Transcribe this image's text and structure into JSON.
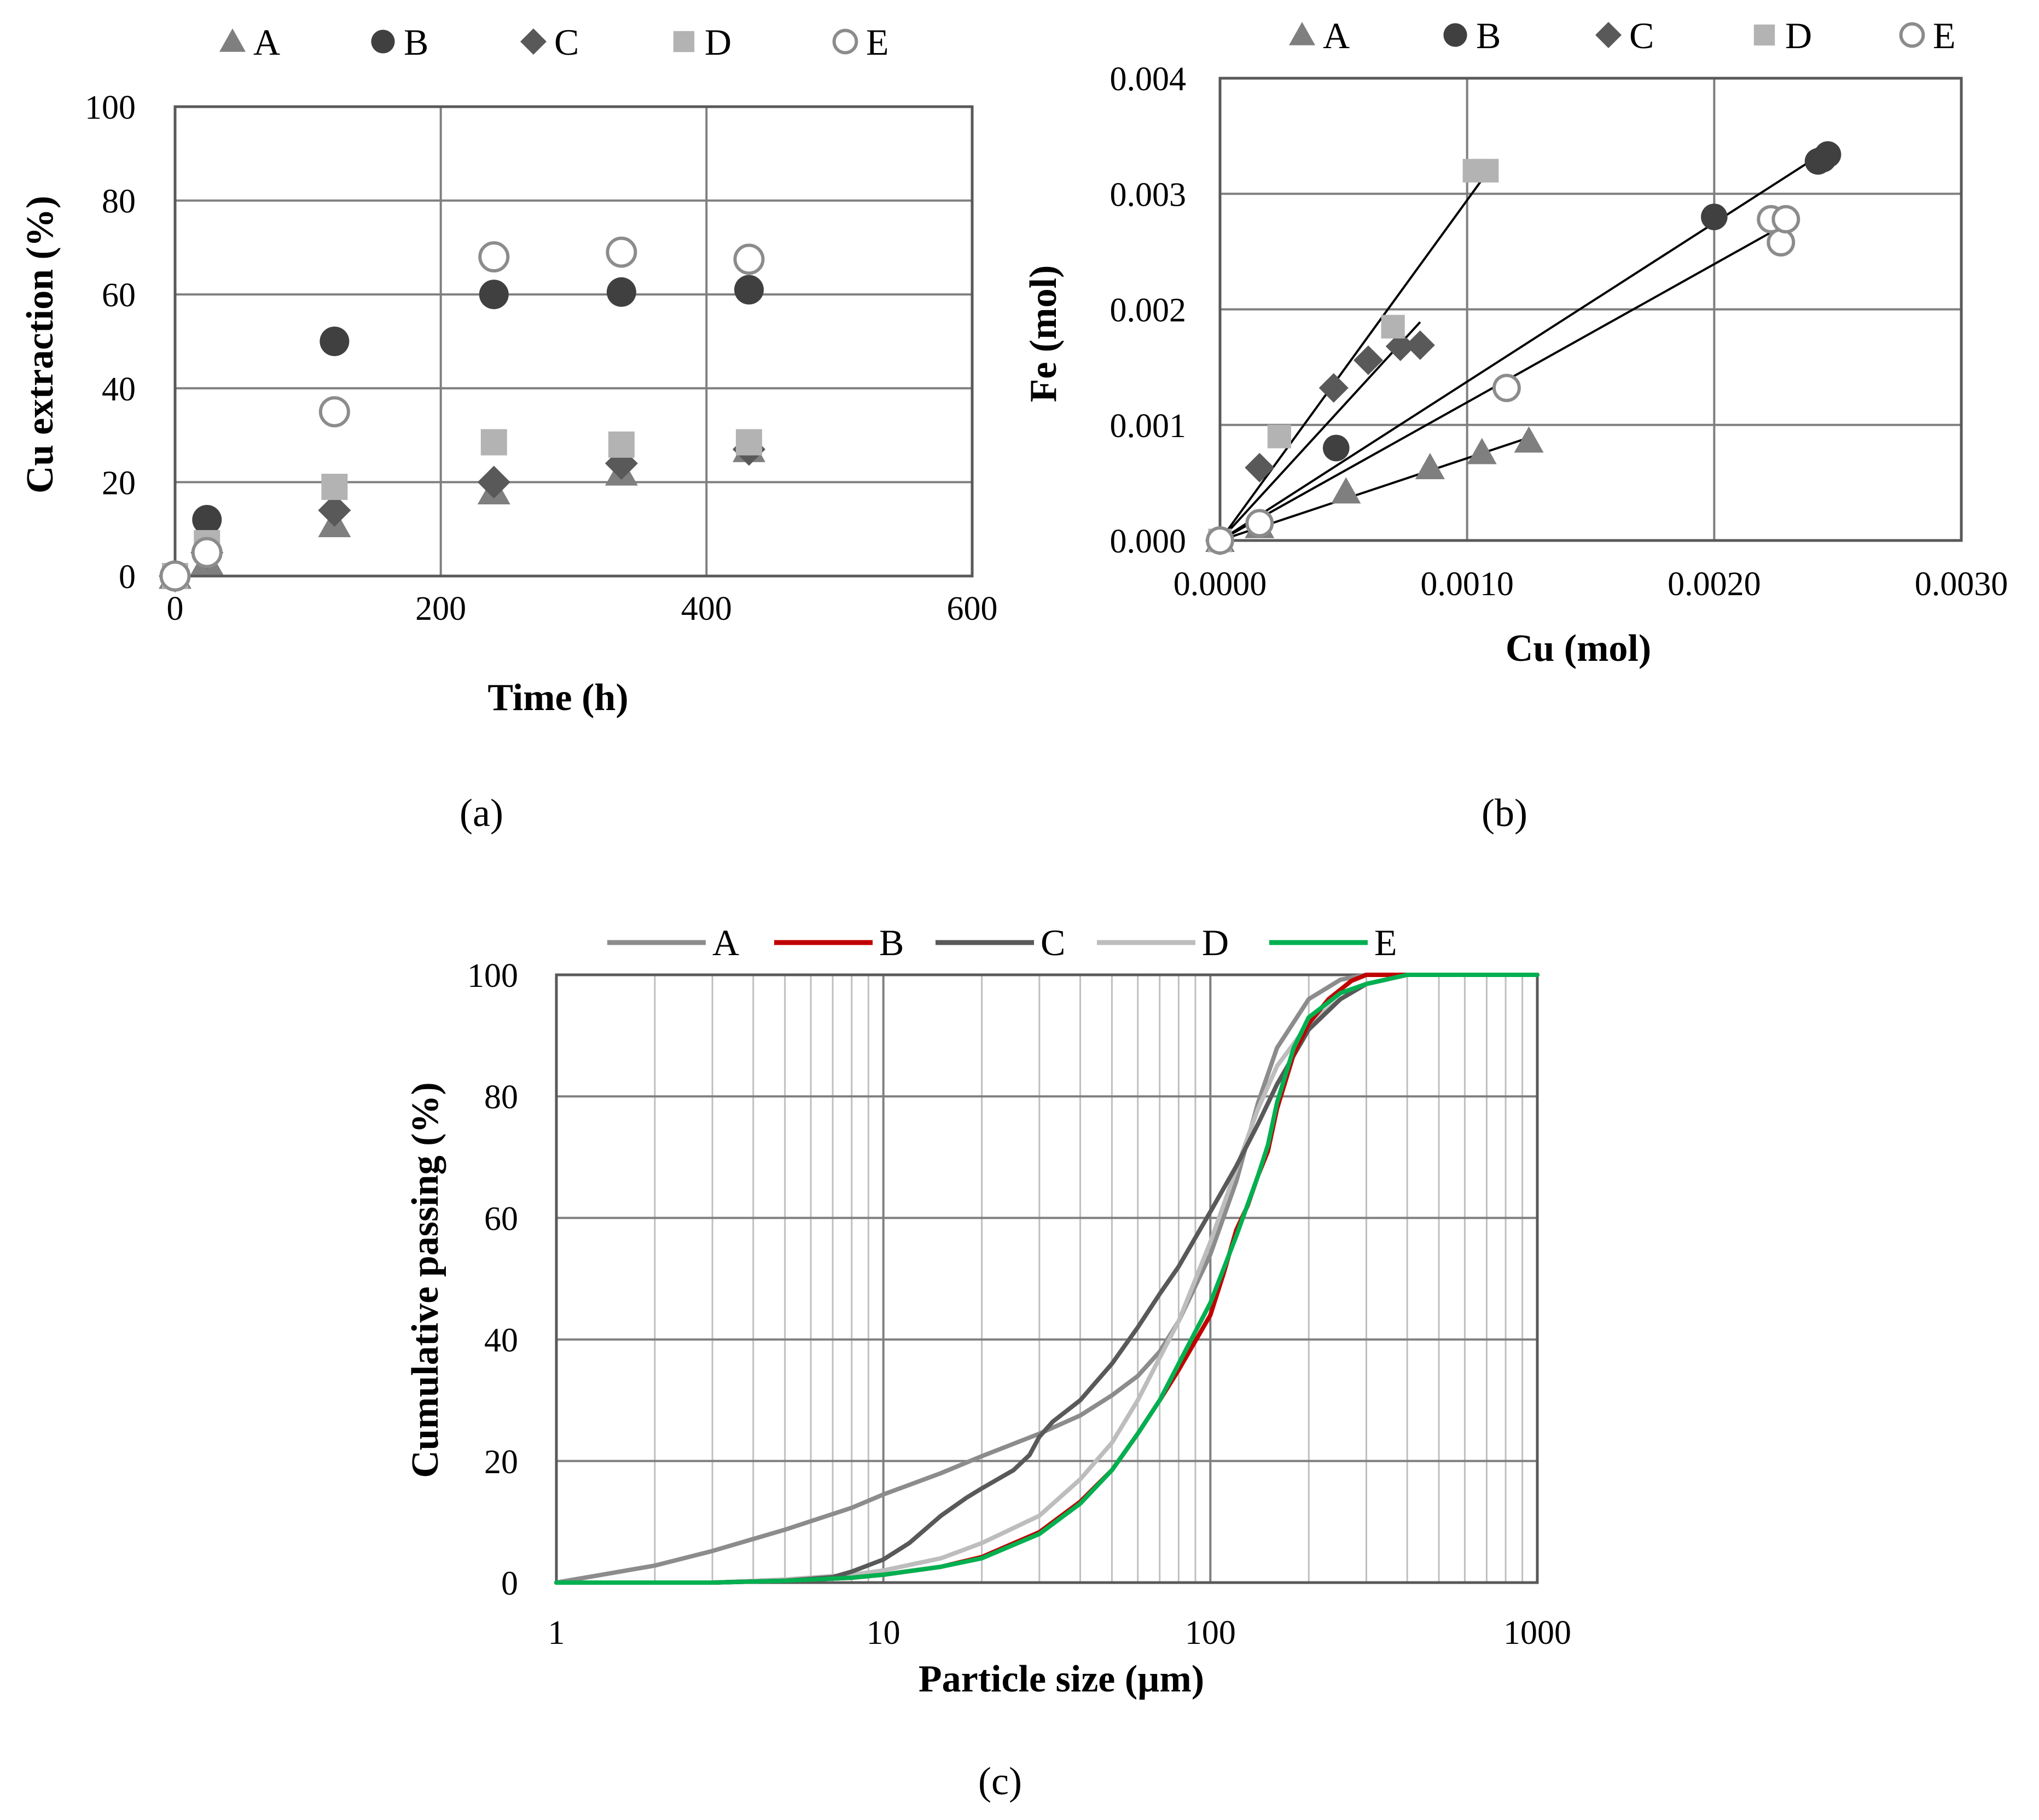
{
  "colors": {
    "A": "#7f7f7f",
    "B": "#404040",
    "C": "#595959",
    "D": "#b3b3b3",
    "E": "#8c8c8c",
    "line_B": "#c00000",
    "line_C": "#595959",
    "line_D": "#bdbdbd",
    "line_E": "#00b050",
    "trendline": "#000000"
  },
  "chart_data": [
    {
      "panel": "a",
      "caption": "(a)",
      "type": "scatter",
      "xlabel": "Time (h)",
      "ylabel": "Cu extraction (%)",
      "xlim": [
        0,
        600
      ],
      "ylim": [
        0,
        100
      ],
      "xticks": [
        "0",
        "200",
        "400",
        "600"
      ],
      "yticks": [
        "0",
        "20",
        "40",
        "60",
        "80",
        "100"
      ],
      "grid": true,
      "legend_position": "top",
      "series": [
        {
          "name": "A",
          "marker": "triangle",
          "points": [
            [
              0,
              0
            ],
            [
              24,
              3
            ],
            [
              120,
              11
            ],
            [
              240,
              18
            ],
            [
              336,
              22
            ],
            [
              432,
              27
            ]
          ]
        },
        {
          "name": "B",
          "marker": "circle",
          "points": [
            [
              0,
              0
            ],
            [
              24,
              12
            ],
            [
              120,
              50
            ],
            [
              240,
              60
            ],
            [
              336,
              60.5
            ],
            [
              432,
              61
            ]
          ]
        },
        {
          "name": "C",
          "marker": "diamond",
          "points": [
            [
              0,
              0
            ],
            [
              24,
              5
            ],
            [
              120,
              14
            ],
            [
              240,
              20
            ],
            [
              336,
              24
            ],
            [
              432,
              27
            ]
          ]
        },
        {
          "name": "D",
          "marker": "square",
          "points": [
            [
              0,
              0
            ],
            [
              24,
              7
            ],
            [
              120,
              19
            ],
            [
              240,
              28.5
            ],
            [
              336,
              28
            ],
            [
              432,
              28.5
            ]
          ]
        },
        {
          "name": "E",
          "marker": "open-circle",
          "points": [
            [
              0,
              0
            ],
            [
              24,
              5
            ],
            [
              120,
              35
            ],
            [
              240,
              68
            ],
            [
              336,
              69
            ],
            [
              432,
              67.5
            ]
          ]
        }
      ]
    },
    {
      "panel": "b",
      "caption": "(b)",
      "type": "scatter",
      "xlabel": "Cu (mol)",
      "ylabel": "Fe (mol)",
      "xlim": [
        0,
        0.003
      ],
      "ylim": [
        0,
        0.004
      ],
      "xticks": [
        "0.0000",
        "0.0010",
        "0.0020",
        "0.0030"
      ],
      "yticks": [
        "0.000",
        "0.001",
        "0.002",
        "0.003",
        "0.004"
      ],
      "grid": true,
      "legend_position": "top",
      "series": [
        {
          "name": "A",
          "marker": "triangle",
          "points": [
            [
              0,
              0
            ],
            [
              0.00016,
              0.00012
            ],
            [
              0.00051,
              0.00042
            ],
            [
              0.00085,
              0.00063
            ],
            [
              0.00106,
              0.00076
            ],
            [
              0.00125,
              0.00086
            ]
          ],
          "trendline": [
            [
              0,
              0
            ],
            [
              0.00125,
              0.00089
            ]
          ]
        },
        {
          "name": "B",
          "marker": "circle",
          "points": [
            [
              0,
              0
            ],
            [
              0.00047,
              0.0008
            ],
            [
              0.002,
              0.0028
            ],
            [
              0.00242,
              0.00328
            ],
            [
              0.00244,
              0.0033
            ],
            [
              0.00246,
              0.00334
            ]
          ],
          "trendline": [
            [
              0,
              0
            ],
            [
              0.00246,
              0.00338
            ]
          ]
        },
        {
          "name": "C",
          "marker": "diamond",
          "points": [
            [
              0,
              0
            ],
            [
              0.00016,
              0.00063
            ],
            [
              0.00046,
              0.00132
            ],
            [
              0.0006,
              0.00156
            ],
            [
              0.00073,
              0.00168
            ],
            [
              0.00081,
              0.00169
            ]
          ],
          "trendline": [
            [
              0,
              0
            ],
            [
              0.00081,
              0.00189
            ]
          ]
        },
        {
          "name": "D",
          "marker": "square",
          "points": [
            [
              0,
              0
            ],
            [
              0.00024,
              0.0009
            ],
            [
              0.0007,
              0.00185
            ],
            [
              0.00103,
              0.0032
            ],
            [
              0.00108,
              0.0032
            ]
          ],
          "trendline": [
            [
              0,
              0
            ],
            [
              0.00108,
              0.00318
            ]
          ]
        },
        {
          "name": "E",
          "marker": "open-circle",
          "points": [
            [
              0,
              0
            ],
            [
              0.00016,
              0.00015
            ],
            [
              0.00116,
              0.00132
            ],
            [
              0.00223,
              0.00278
            ],
            [
              0.00227,
              0.00258
            ],
            [
              0.00229,
              0.00278
            ]
          ],
          "trendline": [
            [
              0,
              0
            ],
            [
              0.0023,
              0.00275
            ]
          ]
        }
      ]
    },
    {
      "panel": "c",
      "caption": "(c)",
      "type": "line",
      "xscale": "log",
      "xlabel": "Particle size (µm)",
      "ylabel": "Cumulative passing (%)",
      "xlim": [
        1,
        1000
      ],
      "ylim": [
        0,
        100
      ],
      "xticks": [
        "1",
        "10",
        "100",
        "1000"
      ],
      "yticks": [
        "0",
        "20",
        "40",
        "60",
        "80",
        "100"
      ],
      "grid": true,
      "legend_position": "top",
      "series": [
        {
          "name": "A",
          "points": [
            [
              1,
              0
            ],
            [
              2,
              2.8
            ],
            [
              3,
              5.2
            ],
            [
              5,
              8.7
            ],
            [
              8,
              12.3
            ],
            [
              10,
              14.5
            ],
            [
              15,
              18
            ],
            [
              20,
              20.8
            ],
            [
              30,
              24.5
            ],
            [
              40,
              27.5
            ],
            [
              50,
              30.8
            ],
            [
              60,
              34
            ],
            [
              70,
              38
            ],
            [
              80,
              43
            ],
            [
              100,
              54
            ],
            [
              120,
              66
            ],
            [
              140,
              79
            ],
            [
              160,
              88
            ],
            [
              200,
              96
            ],
            [
              250,
              99.2
            ],
            [
              300,
              100
            ],
            [
              1000,
              100
            ]
          ]
        },
        {
          "name": "B",
          "points": [
            [
              1,
              0
            ],
            [
              3,
              0
            ],
            [
              5,
              0.3
            ],
            [
              8,
              0.8
            ],
            [
              10,
              1.3
            ],
            [
              15,
              2.6
            ],
            [
              20,
              4.2
            ],
            [
              30,
              8.3
            ],
            [
              40,
              13.3
            ],
            [
              50,
              18.5
            ],
            [
              60,
              24.5
            ],
            [
              70,
              30
            ],
            [
              80,
              35
            ],
            [
              100,
              44
            ],
            [
              110,
              51
            ],
            [
              120,
              58
            ],
            [
              130,
              62
            ],
            [
              140,
              67
            ],
            [
              150,
              71
            ],
            [
              160,
              78
            ],
            [
              180,
              87
            ],
            [
              200,
              92
            ],
            [
              230,
              96
            ],
            [
              270,
              99
            ],
            [
              300,
              100
            ],
            [
              1000,
              100
            ]
          ]
        },
        {
          "name": "C",
          "points": [
            [
              1,
              0
            ],
            [
              3,
              0
            ],
            [
              5,
              0.3
            ],
            [
              7,
              0.9
            ],
            [
              8,
              1.8
            ],
            [
              10,
              3.8
            ],
            [
              12,
              6.5
            ],
            [
              15,
              11
            ],
            [
              18,
              14
            ],
            [
              20,
              15.5
            ],
            [
              25,
              18.5
            ],
            [
              28,
              21
            ],
            [
              30,
              24
            ],
            [
              33,
              26.5
            ],
            [
              40,
              30
            ],
            [
              50,
              36
            ],
            [
              60,
              42
            ],
            [
              70,
              47.5
            ],
            [
              80,
              52
            ],
            [
              100,
              61
            ],
            [
              120,
              68.5
            ],
            [
              140,
              75.5
            ],
            [
              160,
              82
            ],
            [
              200,
              91
            ],
            [
              250,
              96
            ],
            [
              300,
              98.5
            ],
            [
              400,
              100
            ],
            [
              1000,
              100
            ]
          ]
        },
        {
          "name": "D",
          "points": [
            [
              1,
              0
            ],
            [
              3,
              0
            ],
            [
              5,
              0.5
            ],
            [
              8,
              1.3
            ],
            [
              10,
              2
            ],
            [
              15,
              4
            ],
            [
              20,
              6.5
            ],
            [
              30,
              11
            ],
            [
              40,
              17
            ],
            [
              50,
              23
            ],
            [
              60,
              30
            ],
            [
              70,
              37
            ],
            [
              80,
              43
            ],
            [
              100,
              56
            ],
            [
              120,
              68
            ],
            [
              140,
              78
            ],
            [
              160,
              85
            ],
            [
              200,
              92
            ],
            [
              250,
              96
            ],
            [
              300,
              98.5
            ],
            [
              400,
              100
            ],
            [
              1000,
              100
            ]
          ]
        },
        {
          "name": "E",
          "points": [
            [
              1,
              0
            ],
            [
              3,
              0
            ],
            [
              5,
              0.3
            ],
            [
              8,
              0.8
            ],
            [
              10,
              1.3
            ],
            [
              15,
              2.6
            ],
            [
              20,
              4
            ],
            [
              30,
              8
            ],
            [
              40,
              13
            ],
            [
              50,
              18.5
            ],
            [
              60,
              24.5
            ],
            [
              70,
              30
            ],
            [
              80,
              36
            ],
            [
              100,
              46
            ],
            [
              120,
              57
            ],
            [
              140,
              67
            ],
            [
              150,
              72
            ],
            [
              160,
              79
            ],
            [
              180,
              88
            ],
            [
              200,
              93
            ],
            [
              250,
              97
            ],
            [
              300,
              98.5
            ],
            [
              400,
              100
            ],
            [
              1000,
              100
            ]
          ]
        }
      ]
    }
  ]
}
